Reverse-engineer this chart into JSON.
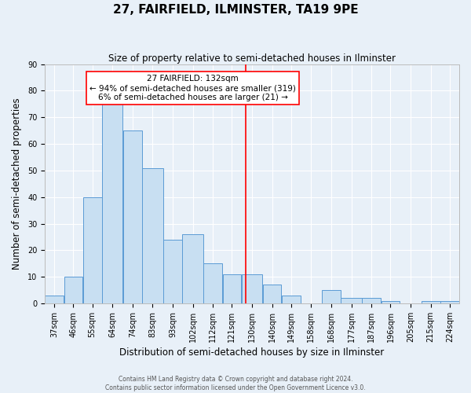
{
  "title": "27, FAIRFIELD, ILMINSTER, TA19 9PE",
  "subtitle": "Size of property relative to semi-detached houses in Ilminster",
  "xlabel": "Distribution of semi-detached houses by size in Ilminster",
  "ylabel": "Number of semi-detached properties",
  "footer_line1": "Contains HM Land Registry data © Crown copyright and database right 2024.",
  "footer_line2": "Contains public sector information licensed under the Open Government Licence v3.0.",
  "bin_labels": [
    "37sqm",
    "46sqm",
    "55sqm",
    "64sqm",
    "74sqm",
    "83sqm",
    "93sqm",
    "102sqm",
    "112sqm",
    "121sqm",
    "130sqm",
    "140sqm",
    "149sqm",
    "158sqm",
    "168sqm",
    "177sqm",
    "187sqm",
    "196sqm",
    "205sqm",
    "215sqm",
    "224sqm"
  ],
  "bin_edges": [
    37,
    46,
    55,
    64,
    74,
    83,
    93,
    102,
    112,
    121,
    130,
    140,
    149,
    158,
    168,
    177,
    187,
    196,
    205,
    215,
    224,
    233
  ],
  "counts": [
    3,
    10,
    40,
    75,
    65,
    51,
    24,
    26,
    15,
    11,
    11,
    7,
    3,
    0,
    5,
    2,
    2,
    1,
    0,
    1,
    1
  ],
  "bar_face_color": "#c8dff2",
  "bar_edge_color": "#5b9bd5",
  "vline_x": 132,
  "vline_color": "red",
  "annotation_title": "27 FAIRFIELD: 132sqm",
  "annotation_line1": "← 94% of semi-detached houses are smaller (319)",
  "annotation_line2": "6% of semi-detached houses are larger (21) →",
  "ylim": [
    0,
    90
  ],
  "yticks": [
    0,
    10,
    20,
    30,
    40,
    50,
    60,
    70,
    80,
    90
  ],
  "background_color": "#e8f0f8",
  "grid_color": "white",
  "title_fontsize": 11,
  "subtitle_fontsize": 8.5,
  "axis_label_fontsize": 8.5,
  "tick_fontsize": 7,
  "annotation_fontsize": 7.5,
  "footer_fontsize": 5.5
}
